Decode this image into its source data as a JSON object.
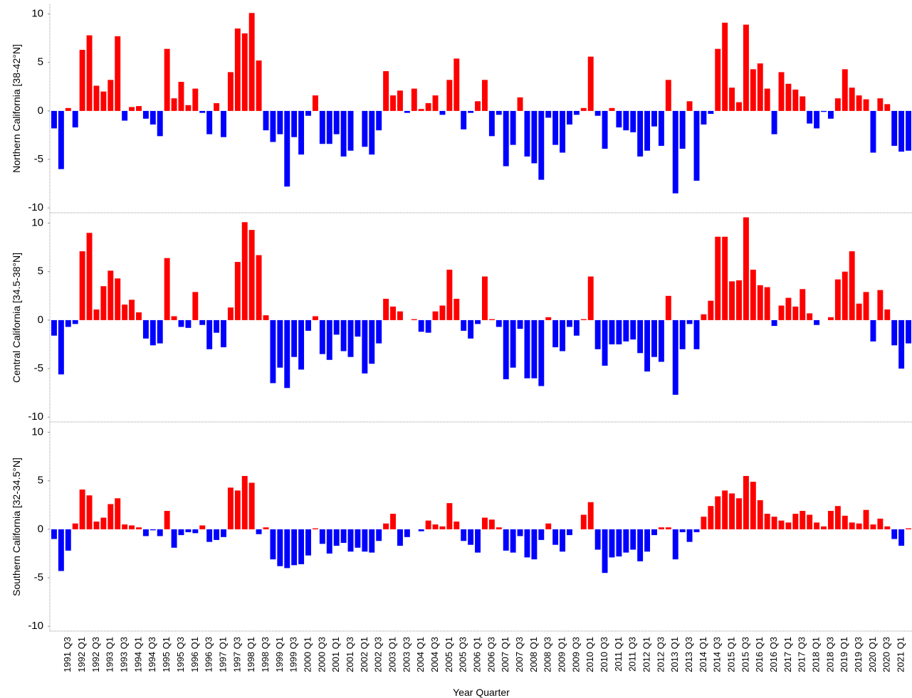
{
  "chart_data": [
    {
      "type": "bar",
      "y_label": "Northern California [38-42°N]",
      "positive_color": "#ff0000",
      "negative_color": "#0000ff",
      "ylim": [
        -10.5,
        11
      ],
      "yticks": [
        10,
        5,
        0,
        -5,
        -10
      ],
      "values": [
        -1.8,
        -6.0,
        0.3,
        -1.7,
        6.3,
        7.8,
        2.6,
        2.0,
        3.2,
        7.7,
        -1.0,
        0.4,
        0.5,
        -0.8,
        -1.4,
        -2.6,
        6.4,
        1.3,
        3.0,
        0.6,
        2.3,
        -0.2,
        -2.4,
        0.8,
        -2.7,
        4.0,
        8.5,
        8.0,
        10.1,
        5.2,
        -2.0,
        -3.2,
        -2.4,
        -7.8,
        -2.7,
        -4.5,
        -0.5,
        1.6,
        -3.4,
        -3.4,
        -2.4,
        -4.7,
        -4.1,
        0,
        -3.7,
        -4.5,
        -2.0,
        4.1,
        1.6,
        2.1,
        -0.2,
        2.3,
        0.2,
        0.8,
        1.6,
        -0.4,
        3.2,
        5.4,
        -1.9,
        -0.2,
        1.0,
        3.2,
        -2.6,
        -0.4,
        -5.7,
        -3.5,
        1.4,
        -4.7,
        -5.4,
        -7.1,
        -0.7,
        -3.5,
        -4.3,
        -1.4,
        -0.4,
        0.3,
        5.6,
        -0.5,
        -3.9,
        0.3,
        -1.7,
        -2.0,
        -2.2,
        -4.7,
        -4.1,
        -1.6,
        -3.6,
        3.2,
        -8.5,
        -3.9,
        1.0,
        -7.2,
        -1.4,
        -0.3,
        6.4,
        9.1,
        2.4,
        0.9,
        8.9,
        4.3,
        4.9,
        2.3,
        -2.4,
        4.0,
        2.8,
        2.2,
        1.5,
        -1.3,
        -1.8,
        -0.1,
        -0.8,
        1.3,
        4.3,
        2.4,
        1.6,
        1.2,
        -4.3,
        1.3,
        0.7,
        -3.6,
        -4.2,
        -4.1
      ]
    },
    {
      "type": "bar",
      "y_label": "Central California [34.5-38°N]",
      "positive_color": "#ff0000",
      "negative_color": "#0000ff",
      "ylim": [
        -10.5,
        11
      ],
      "yticks": [
        10,
        5,
        0,
        -5,
        -10
      ],
      "values": [
        -1.6,
        -5.6,
        -0.7,
        -0.4,
        7.1,
        9.0,
        1.1,
        3.5,
        5.1,
        4.3,
        1.6,
        2.1,
        0.8,
        -1.9,
        -2.6,
        -2.4,
        6.4,
        0.4,
        -0.7,
        -0.8,
        2.9,
        -0.5,
        -3.0,
        -1.3,
        -2.8,
        1.3,
        6.0,
        10.1,
        9.3,
        6.7,
        0.5,
        -6.5,
        -4.9,
        -7.0,
        -3.8,
        -5.1,
        -1.1,
        0.4,
        -3.5,
        -4.1,
        -1.5,
        -3.2,
        -3.8,
        -1.7,
        -5.5,
        -4.5,
        -2.4,
        2.2,
        1.4,
        0.9,
        0,
        0.1,
        -1.2,
        -1.3,
        0.9,
        1.5,
        5.2,
        2.2,
        -1.1,
        -1.9,
        -0.4,
        4.5,
        0.1,
        -0.7,
        -6.1,
        -4.9,
        -0.9,
        -6.0,
        -6.0,
        -6.8,
        0.3,
        -2.8,
        -3.2,
        -0.7,
        -1.6,
        0.1,
        4.5,
        -3.0,
        -4.7,
        -2.5,
        -2.5,
        -2.2,
        -2.0,
        -3.4,
        -5.3,
        -3.8,
        -4.3,
        2.5,
        -7.7,
        -3.0,
        -0.4,
        -3.0,
        0.6,
        2.0,
        8.6,
        8.6,
        4.0,
        4.1,
        10.6,
        5.2,
        3.6,
        3.4,
        -0.6,
        1.5,
        2.3,
        1.4,
        3.2,
        0.7,
        -0.5,
        0,
        0.3,
        4.2,
        5.0,
        7.1,
        1.7,
        2.9,
        -2.2,
        3.1,
        1.1,
        -2.6,
        -5.0,
        -2.4
      ]
    },
    {
      "type": "bar",
      "y_label": "Southern California [32-34.5°N]",
      "x_label": "Year Quarter",
      "positive_color": "#ff0000",
      "negative_color": "#0000ff",
      "ylim": [
        -10.5,
        11
      ],
      "yticks": [
        10,
        5,
        0,
        -5,
        -10
      ],
      "categories": [
        null,
        null,
        "1991 Q3",
        null,
        "1992 Q1",
        null,
        "1992 Q3",
        null,
        "1993 Q1",
        null,
        "1993 Q3",
        null,
        "1994 Q1",
        null,
        "1994 Q3",
        null,
        "1995 Q1",
        null,
        "1995 Q3",
        null,
        "1996 Q1",
        null,
        "1996 Q3",
        null,
        "1997 Q1",
        null,
        "1997 Q3",
        null,
        "1998 Q1",
        null,
        "1998 Q3",
        null,
        "1999 Q1",
        null,
        "1999 Q3",
        null,
        "2000 Q1",
        null,
        "2000 Q3",
        null,
        "2001 Q1",
        null,
        "2001 Q3",
        null,
        "2002 Q1",
        null,
        "2002 Q3",
        null,
        "2003 Q1",
        null,
        "2003 Q3",
        null,
        "2004 Q1",
        null,
        "2004 Q3",
        null,
        "2005 Q1",
        null,
        "2005 Q3",
        null,
        "2006 Q1",
        null,
        "2006 Q3",
        null,
        "2007 Q1",
        null,
        "2007 Q3",
        null,
        "2008 Q1",
        null,
        "2008 Q3",
        null,
        "2009 Q1",
        null,
        "2009 Q3",
        null,
        "2010 Q1",
        null,
        "2010 Q3",
        null,
        "2011 Q1",
        null,
        "2011 Q3",
        null,
        "2012 Q1",
        null,
        "2012 Q3",
        null,
        "2013 Q1",
        null,
        "2013 Q3",
        null,
        "2014 Q1",
        null,
        "2014 Q3",
        null,
        "2015 Q1",
        null,
        "2015 Q3",
        null,
        "2016 Q1",
        null,
        "2016 Q3",
        null,
        "2017 Q1",
        null,
        "2017 Q3",
        null,
        "2018 Q1",
        null,
        "2018 Q3",
        null,
        "2019 Q1",
        null,
        "2019 Q3",
        null,
        "2020 Q1",
        null,
        "2020 Q3",
        null,
        "2021 Q1",
        null
      ],
      "values": [
        -1.0,
        -4.3,
        -2.2,
        0.6,
        4.1,
        3.5,
        0.8,
        1.2,
        2.6,
        3.2,
        0.5,
        0.4,
        0.2,
        -0.7,
        -0.1,
        -0.7,
        1.9,
        -1.9,
        -0.6,
        -0.3,
        -0.4,
        0.4,
        -1.3,
        -1.1,
        -0.8,
        4.3,
        4.0,
        5.5,
        4.8,
        -0.5,
        0.2,
        -3.1,
        -3.8,
        -4.0,
        -3.7,
        -3.6,
        -2.7,
        0.1,
        -1.5,
        -2.5,
        -1.7,
        -1.4,
        -2.3,
        -1.9,
        -2.3,
        -2.4,
        -1.2,
        0.6,
        1.6,
        -1.7,
        -0.8,
        0,
        -0.2,
        0.9,
        0.5,
        0.3,
        2.7,
        0.8,
        -1.2,
        -1.6,
        -2.4,
        1.2,
        1.0,
        0.2,
        -2.2,
        -2.4,
        -0.7,
        -2.9,
        -3.1,
        -1.1,
        0.6,
        -1.6,
        -2.3,
        -0.6,
        0,
        1.5,
        2.8,
        -2.1,
        -4.5,
        -2.9,
        -2.8,
        -2.4,
        -2.1,
        -3.3,
        -2.3,
        -0.6,
        0.2,
        0.2,
        -3.1,
        -0.3,
        -1.3,
        -0.3,
        1.3,
        2.4,
        3.4,
        4.0,
        3.7,
        3.2,
        5.5,
        4.9,
        3.0,
        1.6,
        1.3,
        0.9,
        0.7,
        1.6,
        1.9,
        1.5,
        0.7,
        0.3,
        1.9,
        2.4,
        1.4,
        0.7,
        0.6,
        2.0,
        0.5,
        1.1,
        0.3,
        -1.0,
        -1.7,
        0.1
      ]
    }
  ]
}
